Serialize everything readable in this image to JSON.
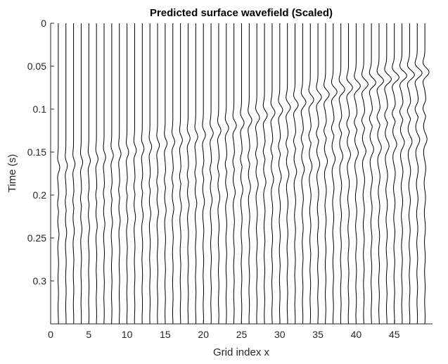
{
  "chart_data": {
    "type": "line",
    "subtype": "seismic-wiggle",
    "title": "Predicted surface wavefield (Scaled)",
    "xlabel": "Grid index x",
    "ylabel": "Time (s)",
    "xlim": [
      0,
      50
    ],
    "ylim": [
      0.35,
      0
    ],
    "y_reversed": true,
    "xticks": [
      0,
      5,
      10,
      15,
      20,
      25,
      30,
      35,
      40,
      45
    ],
    "xtick_labels": [
      "0",
      "5",
      "10",
      "15",
      "20",
      "25",
      "30",
      "35",
      "40",
      "45"
    ],
    "yticks": [
      0,
      0.05,
      0.1,
      0.15,
      0.2,
      0.25,
      0.3
    ],
    "ytick_labels": [
      "0",
      "0.05",
      "0.1",
      "0.15",
      "0.2",
      "0.25",
      "0.3"
    ],
    "grid": false,
    "trace_count": 49,
    "trace_x_start": 1,
    "trace_x_step": 1,
    "arrival_time_by_trace": [
      0.168,
      0.166,
      0.164,
      0.162,
      0.16,
      0.158,
      0.156,
      0.154,
      0.152,
      0.15,
      0.148,
      0.146,
      0.144,
      0.142,
      0.14,
      0.138,
      0.136,
      0.134,
      0.132,
      0.13,
      0.128,
      0.125,
      0.122,
      0.119,
      0.116,
      0.113,
      0.11,
      0.107,
      0.104,
      0.101,
      0.098,
      0.095,
      0.092,
      0.089,
      0.086,
      0.083,
      0.08,
      0.077,
      0.075,
      0.073,
      0.071,
      0.069,
      0.067,
      0.065,
      0.063,
      0.061,
      0.06,
      0.058,
      0.057
    ],
    "amplitude_by_trace": [
      0.35,
      0.35,
      0.35,
      0.36,
      0.36,
      0.37,
      0.37,
      0.38,
      0.38,
      0.39,
      0.4,
      0.41,
      0.42,
      0.43,
      0.44,
      0.45,
      0.46,
      0.47,
      0.48,
      0.5,
      0.52,
      0.54,
      0.56,
      0.58,
      0.6,
      0.62,
      0.64,
      0.66,
      0.68,
      0.7,
      0.72,
      0.75,
      0.78,
      0.81,
      0.84,
      0.87,
      0.9,
      0.93,
      0.96,
      0.99,
      1.02,
      1.05,
      1.08,
      1.1,
      1.12,
      1.14,
      1.15,
      1.15,
      1.0
    ],
    "wavelet_period_s": 0.03
  }
}
